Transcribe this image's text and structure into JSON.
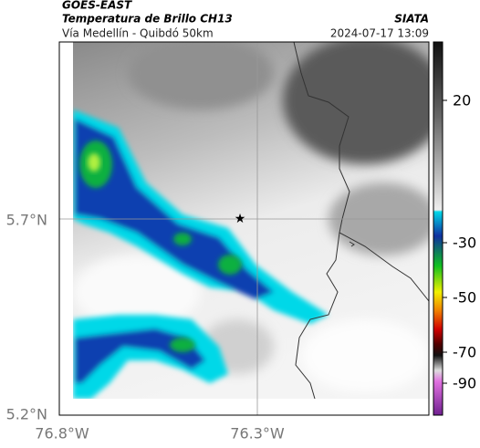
{
  "header": {
    "satellite": "GOES-EAST",
    "product": "Temperatura de Brillo CH13",
    "agency": "SIATA",
    "region": "Vía Medellín - Quibdó 50km",
    "datetime": "2024-07-17 13:09"
  },
  "axes": {
    "lat_labels": [
      "5.7°N",
      "5.2°N"
    ],
    "lon_labels": [
      "76.8°W",
      "76.3°W"
    ]
  },
  "colorbar": {
    "labels": [
      "20",
      "-30",
      "-50",
      "-70",
      "-90"
    ]
  }
}
